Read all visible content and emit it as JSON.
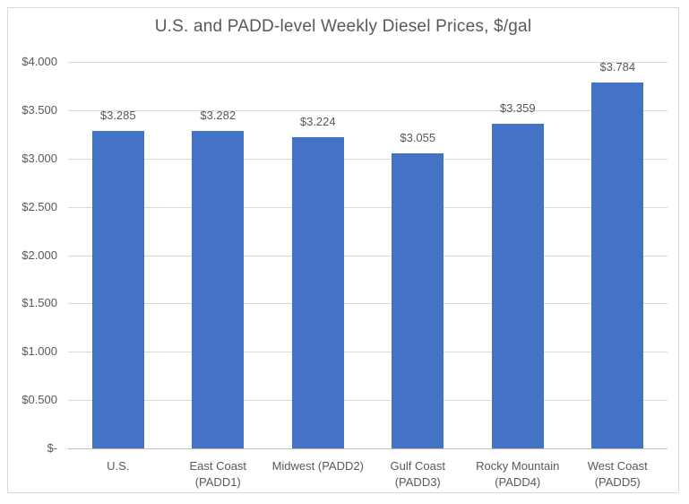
{
  "chart_data": {
    "type": "bar",
    "title": "U.S. and PADD-level Weekly Diesel Prices, $/gal",
    "categories": [
      "U.S.",
      "East Coast\n(PADD1)",
      "Midwest (PADD2)",
      "Gulf Coast\n(PADD3)",
      "Rocky Mountain\n(PADD4)",
      "West Coast\n(PADD5)"
    ],
    "values": [
      3.285,
      3.282,
      3.224,
      3.055,
      3.359,
      3.784
    ],
    "data_labels": [
      "$3.285",
      "$3.282",
      "$3.224",
      "$3.055",
      "$3.359",
      "$3.784"
    ],
    "yticks": [
      {
        "value": 4.0,
        "label": "$4.000"
      },
      {
        "value": 3.5,
        "label": "$3.500"
      },
      {
        "value": 3.0,
        "label": "$3.000"
      },
      {
        "value": 2.5,
        "label": "$2.500"
      },
      {
        "value": 2.0,
        "label": "$2.000"
      },
      {
        "value": 1.5,
        "label": "$1.500"
      },
      {
        "value": 1.0,
        "label": "$1.000"
      },
      {
        "value": 0.5,
        "label": "$0.500"
      },
      {
        "value": 0.0,
        "label": "$-"
      }
    ],
    "ylim": [
      0,
      4.0
    ],
    "xlabel": "",
    "ylabel": "",
    "grid": true,
    "legend": "none",
    "colors": {
      "bar": "#4472C4",
      "text": "#595959",
      "gridline": "#d9d9d9",
      "axis": "#bfbfbf",
      "frame_border": "#d9d9d9",
      "background": "#ffffff"
    }
  }
}
